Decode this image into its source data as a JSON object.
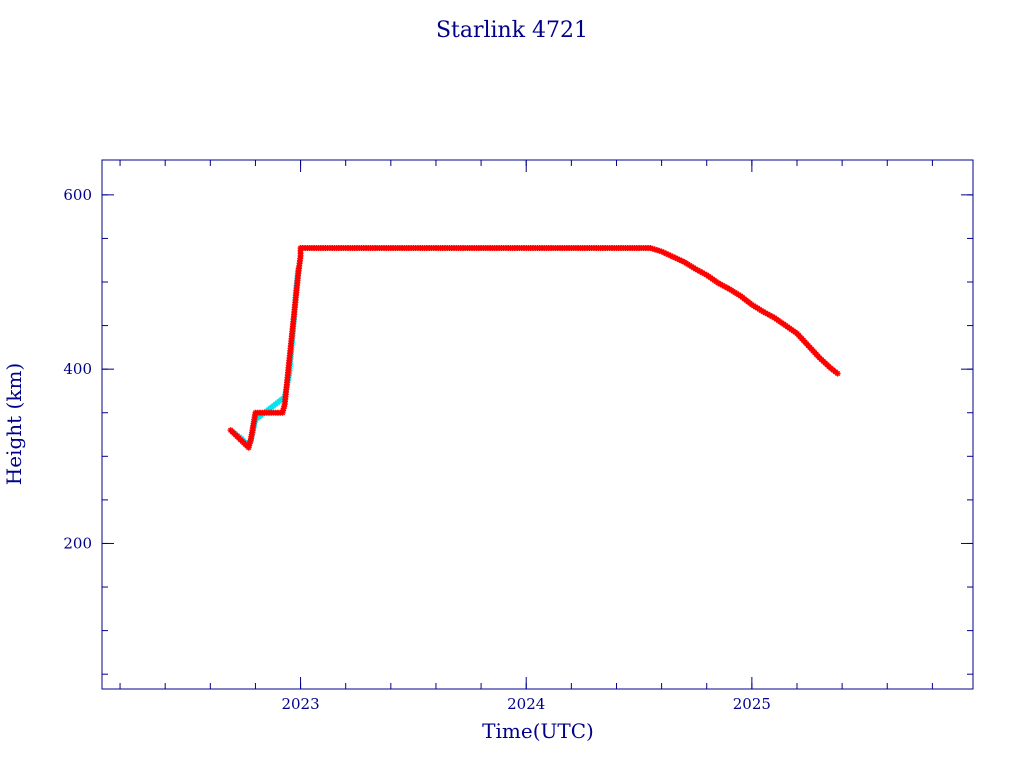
{
  "chart_data": {
    "type": "scatter",
    "title": "Starlink 4721",
    "xlabel": "Time(UTC)",
    "ylabel": "Height (km)",
    "xlim": [
      2022.12,
      2025.98
    ],
    "ylim": [
      33,
      640
    ],
    "x_ticks": [
      {
        "value": 2023,
        "label": "2023"
      },
      {
        "value": 2024,
        "label": "2024"
      },
      {
        "value": 2025,
        "label": "2025"
      }
    ],
    "y_ticks": [
      {
        "value": 200,
        "label": "200"
      },
      {
        "value": 400,
        "label": "400"
      },
      {
        "value": 600,
        "label": "600"
      }
    ],
    "x_minor_step": 0.2,
    "y_minor_step": 50,
    "grid": false,
    "colors": {
      "axes": "#00008b",
      "main_series": "#ff0000",
      "secondary_series": "#00e5ee"
    },
    "series": [
      {
        "color": "#00e5ee",
        "marker": "star",
        "points": [
          [
            2022.7,
            328
          ],
          [
            2022.72,
            324
          ],
          [
            2022.74,
            320
          ],
          [
            2022.76,
            314
          ],
          [
            2022.78,
            318
          ],
          [
            2022.79,
            330
          ],
          [
            2022.8,
            342
          ],
          [
            2022.93,
            368
          ],
          [
            2022.95,
            395
          ],
          [
            2022.96,
            425
          ],
          [
            2022.97,
            455
          ],
          [
            2022.98,
            490
          ],
          [
            2022.99,
            515
          ]
        ]
      },
      {
        "color": "#ff0000",
        "marker": "star",
        "points": [
          [
            2022.69,
            330
          ],
          [
            2022.77,
            310
          ],
          [
            2022.78,
            320
          ],
          [
            2022.79,
            335
          ],
          [
            2022.8,
            350
          ],
          [
            2022.81,
            350
          ],
          [
            2022.83,
            350
          ],
          [
            2022.85,
            350
          ],
          [
            2022.87,
            350
          ],
          [
            2022.89,
            350
          ],
          [
            2022.91,
            350
          ],
          [
            2022.92,
            350
          ],
          [
            2022.93,
            360
          ],
          [
            2022.94,
            385
          ],
          [
            2022.95,
            410
          ],
          [
            2022.96,
            435
          ],
          [
            2022.97,
            460
          ],
          [
            2022.98,
            485
          ],
          [
            2022.99,
            510
          ],
          [
            2023.0,
            530
          ],
          [
            2023.0,
            539
          ],
          [
            2023.02,
            539
          ],
          [
            2023.1,
            539
          ],
          [
            2023.2,
            539
          ],
          [
            2023.3,
            539
          ],
          [
            2023.4,
            539
          ],
          [
            2023.5,
            539
          ],
          [
            2023.6,
            539
          ],
          [
            2023.7,
            539
          ],
          [
            2023.8,
            539
          ],
          [
            2023.9,
            539
          ],
          [
            2024.0,
            539
          ],
          [
            2024.1,
            539
          ],
          [
            2024.2,
            539
          ],
          [
            2024.3,
            539
          ],
          [
            2024.4,
            539
          ],
          [
            2024.5,
            539
          ],
          [
            2024.55,
            539
          ],
          [
            2024.6,
            535
          ],
          [
            2024.65,
            529
          ],
          [
            2024.7,
            523
          ],
          [
            2024.75,
            515
          ],
          [
            2024.8,
            508
          ],
          [
            2024.85,
            499
          ],
          [
            2024.9,
            492
          ],
          [
            2024.95,
            484
          ],
          [
            2025.0,
            474
          ],
          [
            2025.05,
            466
          ],
          [
            2025.1,
            459
          ],
          [
            2025.15,
            450
          ],
          [
            2025.2,
            441
          ],
          [
            2025.25,
            427
          ],
          [
            2025.3,
            413
          ],
          [
            2025.35,
            401
          ],
          [
            2025.38,
            395
          ]
        ]
      }
    ]
  }
}
